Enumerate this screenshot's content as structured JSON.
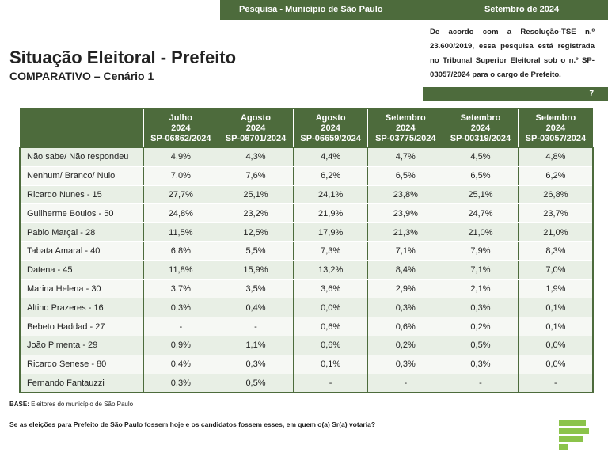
{
  "header": {
    "survey": "Pesquisa - Município de São Paulo",
    "date": "Setembro de 2024"
  },
  "title": "Situação Eleitoral - Prefeito",
  "subtitle": "COMPARATIVO – Cenário 1",
  "legal_note": "De acordo com a Resolução-TSE n.º 23.600/2019, essa pesquisa está registrada no Tribunal Superior Eleitoral sob o n.º SP-03057/2024 para o cargo de Prefeito.",
  "page_number": "7",
  "table": {
    "columns": [
      {
        "month": "Julho",
        "year": "2024",
        "code": "SP-06862/2024"
      },
      {
        "month": "Agosto",
        "year": "2024",
        "code": "SP-08701/2024"
      },
      {
        "month": "Agosto",
        "year": "2024",
        "code": "SP-06659/2024"
      },
      {
        "month": "Setembro",
        "year": "2024",
        "code": "SP-03775/2024"
      },
      {
        "month": "Setembro",
        "year": "2024",
        "code": "SP-00319/2024"
      },
      {
        "month": "Setembro",
        "year": "2024",
        "code": "SP-03057/2024"
      }
    ],
    "rows": [
      {
        "label": "Não sabe/ Não respondeu",
        "values": [
          "4,9%",
          "4,3%",
          "4,4%",
          "4,7%",
          "4,5%",
          "4,8%"
        ]
      },
      {
        "label": "Nenhum/ Branco/ Nulo",
        "values": [
          "7,0%",
          "7,6%",
          "6,2%",
          "6,5%",
          "6,5%",
          "6,2%"
        ]
      },
      {
        "label": "Ricardo Nunes - 15",
        "values": [
          "27,7%",
          "25,1%",
          "24,1%",
          "23,8%",
          "25,1%",
          "26,8%"
        ]
      },
      {
        "label": "Guilherme Boulos - 50",
        "values": [
          "24,8%",
          "23,2%",
          "21,9%",
          "23,9%",
          "24,7%",
          "23,7%"
        ]
      },
      {
        "label": "Pablo Marçal - 28",
        "values": [
          "11,5%",
          "12,5%",
          "17,9%",
          "21,3%",
          "21,0%",
          "21,0%"
        ]
      },
      {
        "label": "Tabata Amaral - 40",
        "values": [
          "6,8%",
          "5,5%",
          "7,3%",
          "7,1%",
          "7,9%",
          "8,3%"
        ]
      },
      {
        "label": "Datena - 45",
        "values": [
          "11,8%",
          "15,9%",
          "13,2%",
          "8,4%",
          "7,1%",
          "7,0%"
        ]
      },
      {
        "label": "Marina Helena - 30",
        "values": [
          "3,7%",
          "3,5%",
          "3,6%",
          "2,9%",
          "2,1%",
          "1,9%"
        ]
      },
      {
        "label": "Altino Prazeres - 16",
        "values": [
          "0,3%",
          "0,4%",
          "0,0%",
          "0,3%",
          "0,3%",
          "0,1%"
        ]
      },
      {
        "label": "Bebeto Haddad - 27",
        "values": [
          "-",
          "-",
          "0,6%",
          "0,6%",
          "0,2%",
          "0,1%"
        ]
      },
      {
        "label": "João Pimenta - 29",
        "values": [
          "0,9%",
          "1,1%",
          "0,6%",
          "0,2%",
          "0,5%",
          "0,0%"
        ]
      },
      {
        "label": "Ricardo Senese - 80",
        "values": [
          "0,4%",
          "0,3%",
          "0,1%",
          "0,3%",
          "0,3%",
          "0,0%"
        ]
      },
      {
        "label": "Fernando Fantauzzi",
        "values": [
          "0,3%",
          "0,5%",
          "-",
          "-",
          "-",
          "-"
        ]
      }
    ]
  },
  "base": {
    "label": "BASE:",
    "text": "Eleitores do município de São Paulo"
  },
  "question": "Se as eleições para Prefeito de São Paulo fossem hoje e os candidatos fossem esses, em quem o(a) Sr(a) votaria?",
  "colors": {
    "brand_green": "#4d6b3c",
    "row_light": "#e8efe5",
    "logo_green": "#8bc34a"
  },
  "logo": {
    "icon": "bar-logo-icon"
  }
}
